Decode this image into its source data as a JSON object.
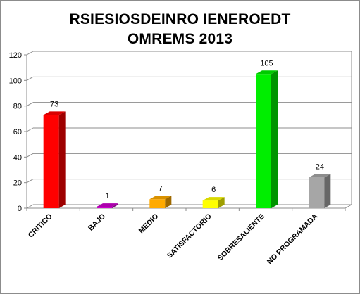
{
  "chart_data": {
    "type": "bar",
    "title_line1": "RSIESIOSDEINRO IENEROEDT",
    "title_line2": "OMREMS 2013",
    "categories": [
      "CRITICO",
      "BAJO",
      "MEDIO",
      "SATISFACTORIO",
      "SOBRESALIENTE",
      "NO PROGRAMADA"
    ],
    "values": [
      73,
      1,
      7,
      6,
      105,
      24
    ],
    "data_labels": [
      "73",
      "1",
      "7",
      "6",
      "105",
      "24"
    ],
    "colors": [
      "#ff0000",
      "#cc00cc",
      "#ffaa00",
      "#ffff00",
      "#00ee00",
      "#a6a6a6"
    ],
    "ylim": [
      0,
      120
    ],
    "yticks": [
      "0",
      "20",
      "40",
      "60",
      "80",
      "100",
      "120"
    ],
    "grid": true
  }
}
